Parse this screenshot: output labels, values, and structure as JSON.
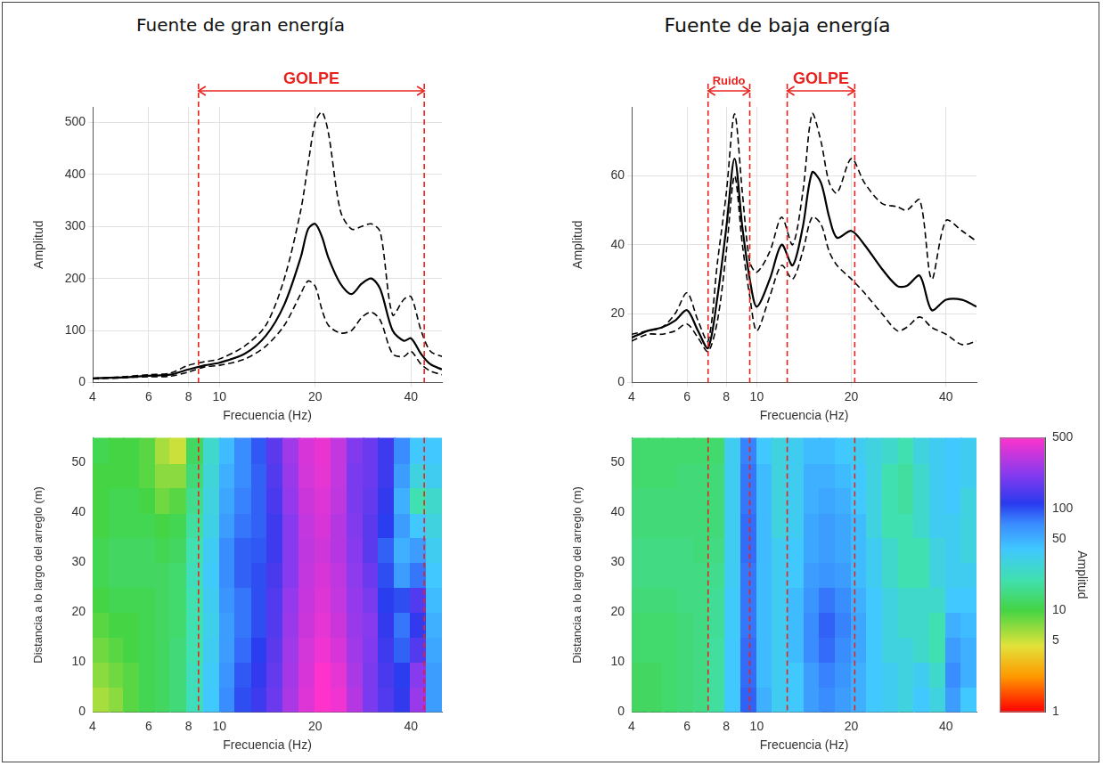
{
  "chart_data": [
    {
      "type": "line",
      "title": "Fuente de gran energía",
      "x_label": "Frecuencia (Hz)",
      "y_label": "Amplitud",
      "log": "x",
      "grid": true,
      "xlim": [
        4,
        50
      ],
      "xticks": [
        4,
        6,
        8,
        10,
        20,
        40
      ],
      "ylim": [
        0,
        530
      ],
      "yticks": [
        0,
        100,
        200,
        300,
        400,
        500
      ],
      "x": [
        4,
        5,
        6,
        7,
        8,
        9,
        10,
        12,
        14,
        16,
        18,
        19,
        20,
        21,
        22,
        24,
        26,
        28,
        30,
        32,
        35,
        38,
        40,
        43,
        46,
        50
      ],
      "series": [
        {
          "color": "#000000",
          "line_style": "dashed",
          "values": [
            8,
            11,
            15,
            18,
            33,
            40,
            45,
            70,
            110,
            200,
            330,
            420,
            500,
            520,
            480,
            330,
            295,
            300,
            305,
            290,
            130,
            160,
            165,
            100,
            60,
            50
          ]
        },
        {
          "color": "#000000",
          "line_style": "solid",
          "values": [
            8,
            10,
            13,
            15,
            25,
            33,
            38,
            55,
            90,
            150,
            240,
            295,
            305,
            280,
            240,
            190,
            170,
            190,
            200,
            180,
            100,
            80,
            85,
            55,
            35,
            25
          ]
        },
        {
          "color": "#000000",
          "line_style": "dashed",
          "values": [
            7,
            9,
            11,
            12,
            20,
            30,
            33,
            45,
            70,
            110,
            170,
            195,
            185,
            140,
            110,
            95,
            100,
            125,
            135,
            120,
            55,
            50,
            60,
            35,
            22,
            15
          ]
        }
      ],
      "annotations": [
        {
          "text": "GOLPE",
          "x": [
            8.6,
            44
          ],
          "color": "#e8231e"
        }
      ]
    },
    {
      "type": "line",
      "title": "Fuente de baja energía",
      "x_label": "Frecuencia (Hz)",
      "y_label": "Amplitud",
      "log": "x",
      "grid": true,
      "xlim": [
        4,
        50
      ],
      "xticks": [
        4,
        6,
        8,
        10,
        20,
        40
      ],
      "ylim": [
        0,
        80
      ],
      "yticks": [
        0,
        20,
        40,
        60
      ],
      "x": [
        4,
        4.5,
        5,
        5.5,
        6,
        6.5,
        7,
        7.5,
        8,
        8.5,
        9,
        9.5,
        10,
        11,
        12,
        13,
        14,
        15,
        16,
        17,
        18,
        20,
        22,
        25,
        28,
        30,
        33,
        36,
        40,
        45,
        50
      ],
      "series": [
        {
          "color": "#000000",
          "line_style": "dashed",
          "values": [
            14,
            15,
            16,
            20,
            26,
            18,
            12,
            35,
            55,
            78,
            55,
            35,
            32,
            38,
            48,
            40,
            55,
            78,
            70,
            58,
            55,
            65,
            58,
            52,
            51,
            50,
            53,
            30,
            47,
            44,
            41
          ]
        },
        {
          "color": "#000000",
          "line_style": "solid",
          "values": [
            13,
            15,
            16,
            18,
            21,
            15,
            10,
            25,
            45,
            65,
            45,
            30,
            22,
            30,
            40,
            34,
            45,
            61,
            58,
            48,
            42,
            44,
            40,
            33,
            28,
            28,
            31,
            21,
            24,
            24,
            22
          ]
        },
        {
          "color": "#000000",
          "line_style": "dashed",
          "values": [
            12,
            14,
            14,
            15,
            17,
            13,
            9,
            18,
            38,
            60,
            40,
            25,
            15,
            25,
            34,
            30,
            38,
            48,
            46,
            38,
            34,
            30,
            26,
            20,
            15,
            16,
            19,
            16,
            14,
            11,
            12
          ]
        }
      ],
      "annotations": [
        {
          "text": "Ruido",
          "x": [
            7,
            9.5
          ],
          "color": "#e8231e"
        },
        {
          "text": "GOLPE",
          "x": [
            12.5,
            20.5
          ],
          "color": "#e8231e"
        }
      ]
    },
    {
      "type": "heatmap",
      "x_label": "Frecuencia (Hz)",
      "y_label": "Distancia a lo largo del arreglo (m)",
      "log": "x",
      "grid": false,
      "xlim": [
        4,
        50
      ],
      "xticks": [
        4,
        6,
        8,
        10,
        20,
        40
      ],
      "ylim": [
        0,
        55
      ],
      "yticks": [
        0,
        10,
        20,
        30,
        40,
        50
      ],
      "x_edges": [
        4,
        4.5,
        5,
        5.6,
        6.3,
        7,
        7.9,
        8.9,
        10,
        11.2,
        12.6,
        14.1,
        15.8,
        17.8,
        20,
        22.4,
        25.1,
        28.2,
        31.6,
        35.5,
        39.8,
        44.7,
        50
      ],
      "y_edges": [
        0,
        5,
        10,
        15,
        20,
        25,
        30,
        35,
        40,
        45,
        50,
        55
      ],
      "z": [
        [
          6,
          7,
          9,
          11,
          12,
          14,
          22,
          40,
          70,
          100,
          130,
          180,
          280,
          400,
          500,
          450,
          300,
          200,
          150,
          120,
          250,
          60
        ],
        [
          7,
          8,
          9,
          11,
          12,
          14,
          22,
          38,
          65,
          95,
          120,
          170,
          270,
          380,
          500,
          420,
          280,
          200,
          140,
          110,
          220,
          60
        ],
        [
          8,
          9,
          10,
          11,
          12,
          14,
          20,
          35,
          60,
          85,
          110,
          160,
          260,
          370,
          450,
          380,
          260,
          210,
          130,
          90,
          150,
          55
        ],
        [
          9,
          10,
          10,
          11,
          12,
          13,
          20,
          33,
          60,
          80,
          100,
          150,
          250,
          350,
          420,
          350,
          250,
          220,
          120,
          80,
          120,
          50
        ],
        [
          10,
          11,
          11,
          11,
          12,
          13,
          20,
          35,
          65,
          80,
          100,
          150,
          240,
          340,
          400,
          330,
          240,
          200,
          110,
          100,
          150,
          45
        ],
        [
          11,
          12,
          12,
          12,
          12,
          13,
          22,
          38,
          70,
          90,
          100,
          140,
          220,
          330,
          380,
          320,
          230,
          180,
          100,
          60,
          80,
          40
        ],
        [
          11,
          12,
          12,
          12,
          11,
          12,
          20,
          36,
          70,
          90,
          95,
          130,
          220,
          320,
          360,
          300,
          220,
          160,
          90,
          50,
          60,
          35
        ],
        [
          10,
          11,
          11,
          11,
          10,
          11,
          18,
          32,
          60,
          80,
          90,
          130,
          220,
          330,
          380,
          300,
          210,
          160,
          110,
          60,
          40,
          30
        ],
        [
          10,
          11,
          11,
          10,
          8,
          9,
          16,
          30,
          55,
          75,
          90,
          140,
          240,
          350,
          400,
          320,
          200,
          170,
          120,
          50,
          20,
          25
        ],
        [
          10,
          10,
          10,
          9,
          7,
          7,
          14,
          28,
          50,
          70,
          90,
          150,
          250,
          370,
          420,
          330,
          200,
          180,
          130,
          60,
          30,
          35
        ],
        [
          11,
          10,
          10,
          9,
          6,
          5,
          12,
          25,
          45,
          70,
          95,
          160,
          260,
          380,
          430,
          330,
          210,
          180,
          130,
          70,
          40,
          40
        ]
      ]
    },
    {
      "type": "heatmap",
      "x_label": "Frecuencia (Hz)",
      "y_label": "Distancia a lo largo del arreglo (m)",
      "log": "x",
      "grid": false,
      "xlim": [
        4,
        50
      ],
      "xticks": [
        4,
        6,
        8,
        10,
        20,
        40
      ],
      "ylim": [
        0,
        55
      ],
      "yticks": [
        0,
        10,
        20,
        30,
        40,
        50
      ],
      "x_edges": [
        4,
        4.5,
        5,
        5.6,
        6.3,
        7,
        7.9,
        8.9,
        10,
        11.2,
        12.6,
        14.1,
        15.8,
        17.8,
        20,
        22.4,
        25.1,
        28.2,
        31.6,
        35.5,
        39.8,
        44.7,
        50
      ],
      "y_edges": [
        0,
        5,
        10,
        15,
        20,
        25,
        30,
        35,
        40,
        45,
        50,
        55
      ],
      "z": [
        [
          12,
          12,
          13,
          14,
          15,
          18,
          40,
          90,
          50,
          35,
          40,
          60,
          70,
          60,
          50,
          40,
          35,
          30,
          40,
          30,
          60,
          40
        ],
        [
          12,
          12,
          13,
          14,
          15,
          18,
          40,
          85,
          45,
          35,
          40,
          60,
          75,
          65,
          50,
          40,
          35,
          30,
          35,
          25,
          70,
          50
        ],
        [
          13,
          13,
          13,
          14,
          15,
          18,
          40,
          85,
          45,
          35,
          45,
          70,
          85,
          70,
          55,
          40,
          30,
          30,
          25,
          20,
          60,
          50
        ],
        [
          13,
          13,
          13,
          14,
          15,
          17,
          38,
          80,
          45,
          35,
          45,
          70,
          90,
          75,
          55,
          40,
          30,
          25,
          25,
          20,
          50,
          45
        ],
        [
          14,
          14,
          14,
          15,
          15,
          17,
          38,
          80,
          45,
          35,
          45,
          65,
          80,
          70,
          50,
          40,
          30,
          25,
          25,
          25,
          40,
          40
        ],
        [
          15,
          15,
          15,
          15,
          15,
          16,
          36,
          80,
          45,
          35,
          40,
          60,
          65,
          60,
          45,
          35,
          25,
          20,
          20,
          30,
          35,
          35
        ],
        [
          15,
          15,
          15,
          15,
          14,
          15,
          35,
          85,
          45,
          35,
          40,
          55,
          60,
          55,
          45,
          35,
          25,
          20,
          20,
          30,
          35,
          30
        ],
        [
          14,
          14,
          14,
          14,
          14,
          14,
          35,
          85,
          45,
          30,
          35,
          55,
          60,
          55,
          45,
          30,
          20,
          20,
          25,
          35,
          35,
          30
        ],
        [
          14,
          14,
          14,
          14,
          14,
          14,
          35,
          80,
          45,
          30,
          35,
          50,
          55,
          50,
          40,
          30,
          20,
          18,
          25,
          35,
          40,
          30
        ],
        [
          13,
          13,
          13,
          14,
          14,
          14,
          35,
          80,
          45,
          30,
          35,
          50,
          50,
          45,
          40,
          30,
          20,
          18,
          25,
          35,
          40,
          35
        ],
        [
          13,
          13,
          13,
          13,
          13,
          13,
          35,
          75,
          40,
          30,
          35,
          45,
          45,
          40,
          35,
          30,
          25,
          20,
          30,
          35,
          40,
          35
        ]
      ],
      "colorbar": {
        "label": "Amplitud",
        "range": [
          1,
          500
        ],
        "ticks": [
          1,
          5,
          10,
          50,
          100,
          500
        ],
        "log": true
      }
    }
  ]
}
